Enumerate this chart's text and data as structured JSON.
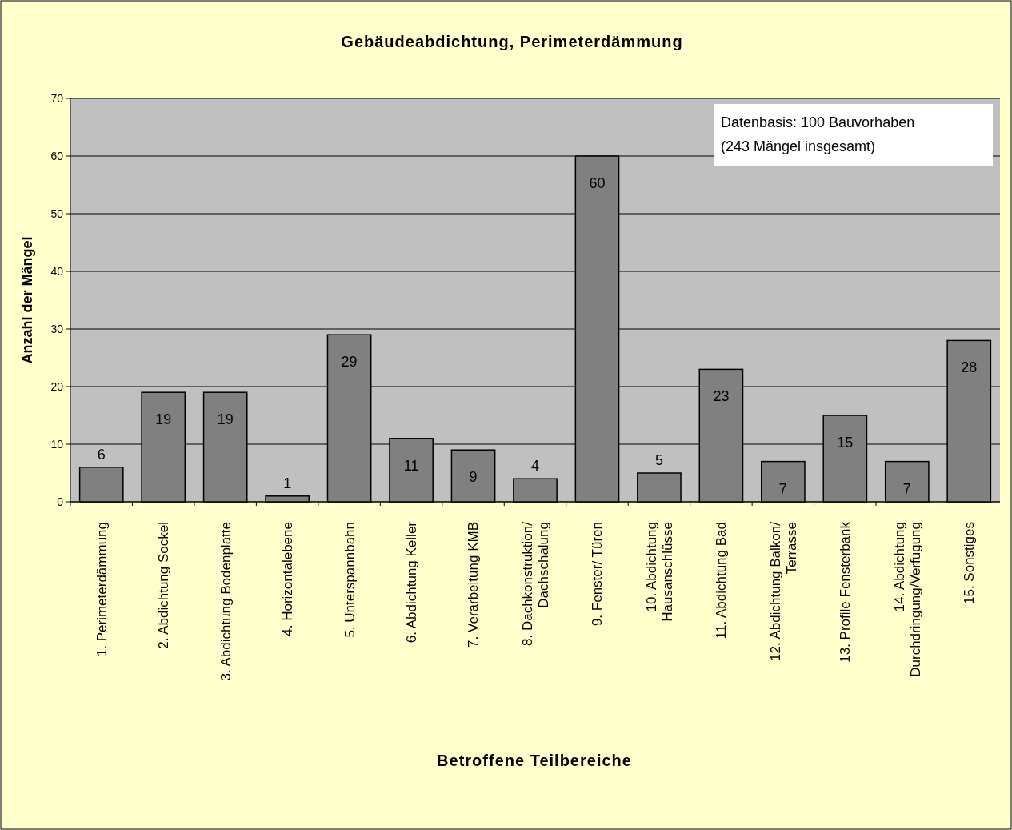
{
  "chart_data": {
    "type": "bar",
    "title": "Gebäudeabdichtung, Perimeterdämmung",
    "xlabel": "Betroffene Teilbereiche",
    "ylabel": "Anzahl der Mängel",
    "categories": [
      "1. Perimeterdämmung",
      "2. Abdichtung Sockel",
      "3. Abdichtung Bodenplatte",
      "4. Horizontalebene",
      "5. Unterspannbahn",
      "6. Abdichtung Keller",
      "7. Verarbeitung KMB",
      "8. Dachkonstruktion/ Dachschalung",
      "9. Fenster/ Türen",
      "10. Abdichtung Hausanschlüsse",
      "11. Abdichtung Bad",
      "12. Abdichtung Balkon/ Terrasse",
      "13. Profile Fensterbank",
      "14. Abdichtung Durchdringung/Verfugung",
      "15. Sonstiges"
    ],
    "values": [
      6,
      19,
      19,
      1,
      29,
      11,
      9,
      4,
      60,
      5,
      23,
      7,
      15,
      7,
      28
    ],
    "color": "#808080",
    "ylim": [
      0,
      70
    ],
    "yticks": [
      0,
      10,
      20,
      30,
      40,
      50,
      60,
      70
    ],
    "grid": "y",
    "data_labels": true,
    "annotations": [
      "Datenbasis: 100 Bauvorhaben\n(243 Mängel insgesamt)"
    ]
  }
}
